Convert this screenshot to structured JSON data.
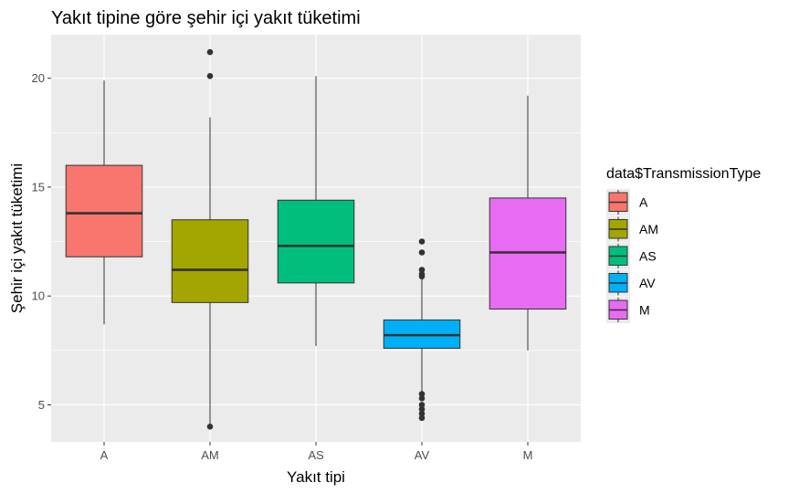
{
  "chart_data": {
    "type": "boxplot",
    "title": "Yakıt tipine göre şehir içi yakıt tüketimi",
    "xlabel": "Yakıt tipi",
    "ylabel": "Şehir içi yakıt tüketimi",
    "ylim": [
      3.3,
      22.0
    ],
    "yticks": [
      5,
      10,
      15,
      20
    ],
    "grid": true,
    "legend": {
      "title": "data$TransmissionType",
      "position": "right",
      "entries": [
        "A",
        "AM",
        "AS",
        "AV",
        "M"
      ]
    },
    "categories": [
      "A",
      "AM",
      "AS",
      "AV",
      "M"
    ],
    "boxes": [
      {
        "category": "A",
        "color": "#F8766D",
        "whisker_low": 8.7,
        "q1": 11.8,
        "median": 13.8,
        "q3": 16.0,
        "whisker_high": 19.9,
        "outliers": []
      },
      {
        "category": "AM",
        "color": "#A3A500",
        "whisker_low": 4.1,
        "q1": 9.7,
        "median": 11.2,
        "q3": 13.5,
        "whisker_high": 18.2,
        "outliers": [
          4.0,
          20.1,
          21.2
        ]
      },
      {
        "category": "AS",
        "color": "#00BF7D",
        "whisker_low": 7.7,
        "q1": 10.6,
        "median": 12.3,
        "q3": 14.4,
        "whisker_high": 20.1,
        "outliers": []
      },
      {
        "category": "AV",
        "color": "#00B0F6",
        "whisker_low": 5.6,
        "q1": 7.6,
        "median": 8.2,
        "q3": 8.9,
        "whisker_high": 10.8,
        "outliers": [
          4.4,
          4.6,
          4.8,
          5.0,
          5.3,
          5.5,
          10.9,
          11.0,
          11.2,
          12.0,
          12.5
        ]
      },
      {
        "category": "M",
        "color": "#E76BF3",
        "whisker_low": 7.5,
        "q1": 9.4,
        "median": 12.0,
        "q3": 14.5,
        "whisker_high": 19.2,
        "outliers": []
      }
    ]
  }
}
